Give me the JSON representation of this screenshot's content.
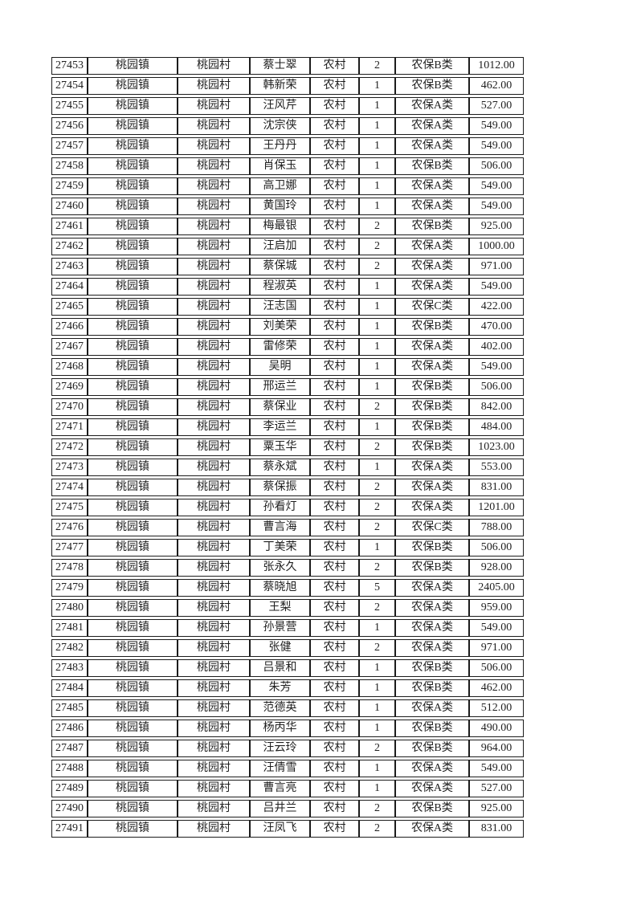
{
  "colors": {
    "border": "#1c1c1c",
    "text": "#1f1f1f",
    "background": "#ffffff"
  },
  "table": {
    "columns": [
      "record-id",
      "town",
      "village",
      "name",
      "category",
      "person-count",
      "insurance-type",
      "amount"
    ],
    "rows": [
      [
        "27453",
        "桃园镇",
        "桃园村",
        "蔡士翠",
        "农村",
        "2",
        "农保B类",
        "1012.00"
      ],
      [
        "27454",
        "桃园镇",
        "桃园村",
        "韩新荣",
        "农村",
        "1",
        "农保B类",
        "462.00"
      ],
      [
        "27455",
        "桃园镇",
        "桃园村",
        "汪风芹",
        "农村",
        "1",
        "农保A类",
        "527.00"
      ],
      [
        "27456",
        "桃园镇",
        "桃园村",
        "沈宗侠",
        "农村",
        "1",
        "农保A类",
        "549.00"
      ],
      [
        "27457",
        "桃园镇",
        "桃园村",
        "王丹丹",
        "农村",
        "1",
        "农保A类",
        "549.00"
      ],
      [
        "27458",
        "桃园镇",
        "桃园村",
        "肖保玉",
        "农村",
        "1",
        "农保B类",
        "506.00"
      ],
      [
        "27459",
        "桃园镇",
        "桃园村",
        "高卫娜",
        "农村",
        "1",
        "农保A类",
        "549.00"
      ],
      [
        "27460",
        "桃园镇",
        "桃园村",
        "黄国玲",
        "农村",
        "1",
        "农保A类",
        "549.00"
      ],
      [
        "27461",
        "桃园镇",
        "桃园村",
        "梅最银",
        "农村",
        "2",
        "农保B类",
        "925.00"
      ],
      [
        "27462",
        "桃园镇",
        "桃园村",
        "汪启加",
        "农村",
        "2",
        "农保A类",
        "1000.00"
      ],
      [
        "27463",
        "桃园镇",
        "桃园村",
        "蔡保城",
        "农村",
        "2",
        "农保A类",
        "971.00"
      ],
      [
        "27464",
        "桃园镇",
        "桃园村",
        "程淑英",
        "农村",
        "1",
        "农保A类",
        "549.00"
      ],
      [
        "27465",
        "桃园镇",
        "桃园村",
        "汪志国",
        "农村",
        "1",
        "农保C类",
        "422.00"
      ],
      [
        "27466",
        "桃园镇",
        "桃园村",
        "刘美荣",
        "农村",
        "1",
        "农保B类",
        "470.00"
      ],
      [
        "27467",
        "桃园镇",
        "桃园村",
        "雷修荣",
        "农村",
        "1",
        "农保A类",
        "402.00"
      ],
      [
        "27468",
        "桃园镇",
        "桃园村",
        "吴明",
        "农村",
        "1",
        "农保A类",
        "549.00"
      ],
      [
        "27469",
        "桃园镇",
        "桃园村",
        "邢运兰",
        "农村",
        "1",
        "农保B类",
        "506.00"
      ],
      [
        "27470",
        "桃园镇",
        "桃园村",
        "蔡保业",
        "农村",
        "2",
        "农保B类",
        "842.00"
      ],
      [
        "27471",
        "桃园镇",
        "桃园村",
        "李运兰",
        "农村",
        "1",
        "农保B类",
        "484.00"
      ],
      [
        "27472",
        "桃园镇",
        "桃园村",
        "粟玉华",
        "农村",
        "2",
        "农保B类",
        "1023.00"
      ],
      [
        "27473",
        "桃园镇",
        "桃园村",
        "蔡永斌",
        "农村",
        "1",
        "农保A类",
        "553.00"
      ],
      [
        "27474",
        "桃园镇",
        "桃园村",
        "蔡保振",
        "农村",
        "2",
        "农保A类",
        "831.00"
      ],
      [
        "27475",
        "桃园镇",
        "桃园村",
        "孙看灯",
        "农村",
        "2",
        "农保A类",
        "1201.00"
      ],
      [
        "27476",
        "桃园镇",
        "桃园村",
        "曹言海",
        "农村",
        "2",
        "农保C类",
        "788.00"
      ],
      [
        "27477",
        "桃园镇",
        "桃园村",
        "丁美荣",
        "农村",
        "1",
        "农保B类",
        "506.00"
      ],
      [
        "27478",
        "桃园镇",
        "桃园村",
        "张永久",
        "农村",
        "2",
        "农保B类",
        "928.00"
      ],
      [
        "27479",
        "桃园镇",
        "桃园村",
        "蔡晓旭",
        "农村",
        "5",
        "农保A类",
        "2405.00"
      ],
      [
        "27480",
        "桃园镇",
        "桃园村",
        "王梨",
        "农村",
        "2",
        "农保A类",
        "959.00"
      ],
      [
        "27481",
        "桃园镇",
        "桃园村",
        "孙景营",
        "农村",
        "1",
        "农保A类",
        "549.00"
      ],
      [
        "27482",
        "桃园镇",
        "桃园村",
        "张健",
        "农村",
        "2",
        "农保A类",
        "971.00"
      ],
      [
        "27483",
        "桃园镇",
        "桃园村",
        "吕景和",
        "农村",
        "1",
        "农保B类",
        "506.00"
      ],
      [
        "27484",
        "桃园镇",
        "桃园村",
        "朱芳",
        "农村",
        "1",
        "农保B类",
        "462.00"
      ],
      [
        "27485",
        "桃园镇",
        "桃园村",
        "范德英",
        "农村",
        "1",
        "农保A类",
        "512.00"
      ],
      [
        "27486",
        "桃园镇",
        "桃园村",
        "杨丙华",
        "农村",
        "1",
        "农保B类",
        "490.00"
      ],
      [
        "27487",
        "桃园镇",
        "桃园村",
        "汪云玲",
        "农村",
        "2",
        "农保B类",
        "964.00"
      ],
      [
        "27488",
        "桃园镇",
        "桃园村",
        "汪倩雪",
        "农村",
        "1",
        "农保A类",
        "549.00"
      ],
      [
        "27489",
        "桃园镇",
        "桃园村",
        "曹言亮",
        "农村",
        "1",
        "农保A类",
        "527.00"
      ],
      [
        "27490",
        "桃园镇",
        "桃园村",
        "吕井兰",
        "农村",
        "2",
        "农保B类",
        "925.00"
      ],
      [
        "27491",
        "桃园镇",
        "桃园村",
        "汪凤飞",
        "农村",
        "2",
        "农保A类",
        "831.00"
      ]
    ]
  }
}
